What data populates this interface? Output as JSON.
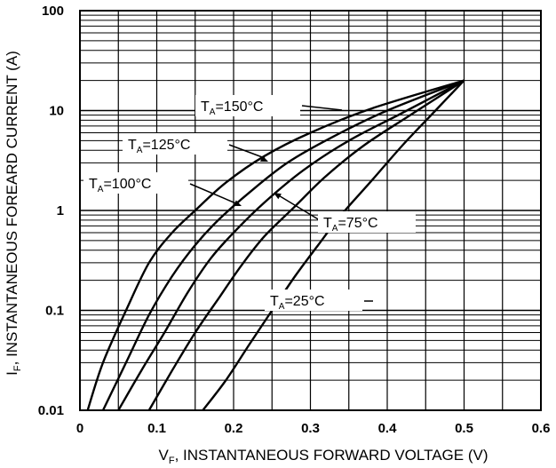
{
  "chart_data": {
    "type": "line",
    "title": "",
    "xlabel": {
      "main": "V",
      "sub": "F",
      "rest": ", INSTANTANEOUS FORWARD VOLTAGE (V)"
    },
    "ylabel": {
      "main": "I",
      "sub": "F",
      "rest": ", INSTANTANEOUS FOREARD CURRENT (A)"
    },
    "xlim": [
      0,
      0.6
    ],
    "ylim": [
      0.01,
      100
    ],
    "yscale": "log",
    "grid": true,
    "xticks": [
      {
        "value": 0,
        "label": "0"
      },
      {
        "value": 0.1,
        "label": "0.1"
      },
      {
        "value": 0.2,
        "label": "0.2"
      },
      {
        "value": 0.3,
        "label": "0.3"
      },
      {
        "value": 0.4,
        "label": "0.4"
      },
      {
        "value": 0.5,
        "label": "0.5"
      },
      {
        "value": 0.6,
        "label": "0.6"
      }
    ],
    "yticks": [
      {
        "value": 0.01,
        "label": "0.01"
      },
      {
        "value": 0.1,
        "label": "0.1"
      },
      {
        "value": 1,
        "label": "1"
      },
      {
        "value": 10,
        "label": "10"
      },
      {
        "value": 100,
        "label": "100"
      }
    ],
    "series": [
      {
        "name": "150°C",
        "x": [
          0.01,
          0.03,
          0.06,
          0.09,
          0.12,
          0.15,
          0.19,
          0.24,
          0.3,
          0.38,
          0.5
        ],
        "y": [
          0.01,
          0.03,
          0.1,
          0.3,
          0.6,
          1.0,
          1.9,
          3.5,
          6.0,
          10.5,
          20
        ]
      },
      {
        "name": "125°C",
        "x": [
          0.03,
          0.06,
          0.09,
          0.12,
          0.15,
          0.18,
          0.22,
          0.27,
          0.33,
          0.4,
          0.5
        ],
        "y": [
          0.01,
          0.03,
          0.09,
          0.22,
          0.45,
          0.8,
          1.5,
          3.0,
          5.5,
          10,
          20
        ]
      },
      {
        "name": "100°C",
        "x": [
          0.05,
          0.08,
          0.11,
          0.14,
          0.17,
          0.2,
          0.24,
          0.29,
          0.35,
          0.42,
          0.5
        ],
        "y": [
          0.01,
          0.025,
          0.06,
          0.15,
          0.33,
          0.6,
          1.2,
          2.5,
          5.0,
          9.5,
          20
        ]
      },
      {
        "name": "75°C",
        "x": [
          0.09,
          0.12,
          0.15,
          0.18,
          0.21,
          0.24,
          0.28,
          0.32,
          0.37,
          0.43,
          0.5
        ],
        "y": [
          0.01,
          0.025,
          0.06,
          0.13,
          0.28,
          0.55,
          1.1,
          2.2,
          4.5,
          9.0,
          20
        ]
      },
      {
        "name": "25°C",
        "x": [
          0.16,
          0.19,
          0.22,
          0.25,
          0.28,
          0.31,
          0.34,
          0.38,
          0.42,
          0.46,
          0.5
        ],
        "y": [
          0.01,
          0.02,
          0.045,
          0.1,
          0.22,
          0.45,
          0.9,
          2.0,
          4.5,
          9.5,
          20
        ]
      }
    ],
    "annotations": [
      {
        "prefix": "T",
        "sub": "A",
        "text": "=150°C",
        "series": "150°C"
      },
      {
        "prefix": "T",
        "sub": "A",
        "text": "=125°C",
        "series": "125°C"
      },
      {
        "prefix": "T",
        "sub": "A",
        "text": "=100°C",
        "series": "100°C"
      },
      {
        "prefix": "T",
        "sub": "A",
        "text": "=75°C",
        "series": "75°C"
      },
      {
        "prefix": "T",
        "sub": "A",
        "text": "=25°C",
        "series": "25°C"
      }
    ]
  }
}
